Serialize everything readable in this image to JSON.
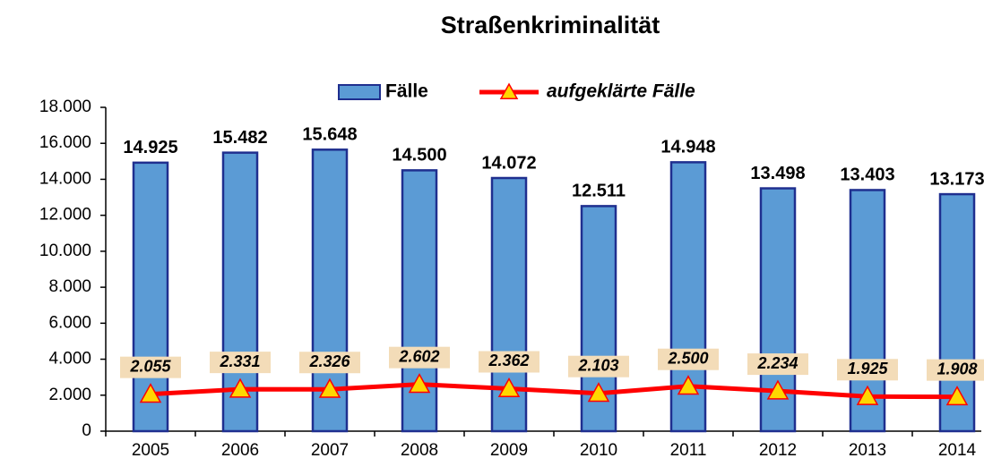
{
  "chart_data": {
    "type": "bar",
    "title": "Straßenkriminalität",
    "categories": [
      "2005",
      "2006",
      "2007",
      "2008",
      "2009",
      "2010",
      "2011",
      "2012",
      "2013",
      "2014"
    ],
    "series": [
      {
        "name": "Fälle",
        "type": "bar",
        "color": "#5b9bd5",
        "values": [
          14925,
          15482,
          15648,
          14500,
          14072,
          12511,
          14948,
          13498,
          13403,
          13173
        ],
        "value_labels": [
          "14.925",
          "15.482",
          "15.648",
          "14.500",
          "14.072",
          "12.511",
          "14.948",
          "13.498",
          "13.403",
          "13.173"
        ]
      },
      {
        "name": "aufgeklärte Fälle",
        "type": "line",
        "color": "#ff0000",
        "values": [
          2055,
          2331,
          2326,
          2602,
          2362,
          2103,
          2500,
          2234,
          1925,
          1908
        ],
        "value_labels": [
          "2.055",
          "2.331",
          "2.326",
          "2.602",
          "2.362",
          "2.103",
          "2.500",
          "2.234",
          "1.925",
          "1.908"
        ]
      }
    ],
    "ylim": [
      0,
      18000
    ],
    "yticks": [
      0,
      {
        "value": 2000,
        "label": "2.000"
      },
      {
        "value": 4000,
        "label": "4.000"
      },
      {
        "value": 6000,
        "label": "6.000"
      },
      {
        "value": 8000,
        "label": "8.000"
      },
      {
        "value": 10000,
        "label": "10.000"
      },
      {
        "value": 12000,
        "label": "12.000"
      },
      {
        "value": 14000,
        "label": "14.000"
      },
      {
        "value": 16000,
        "label": "16.000"
      },
      {
        "value": 18000,
        "label": "18.000"
      }
    ],
    "grid": false,
    "legend": "top"
  }
}
